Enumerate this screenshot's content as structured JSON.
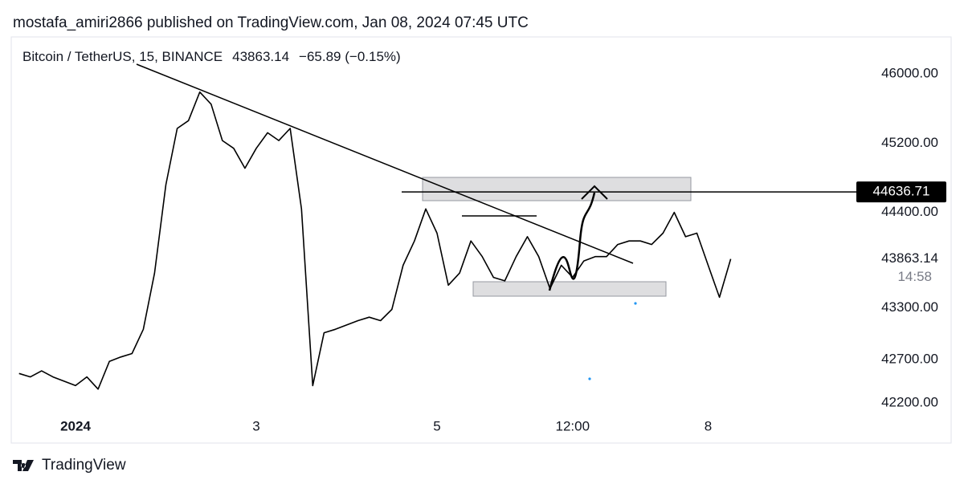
{
  "header": "mostafa_amiri2866 published on TradingView.com, Jan 08, 2024 07:45 UTC",
  "footer": "TradingView",
  "chart_data": {
    "type": "line",
    "title": "Bitcoin / TetherUS, 15, BINANCE",
    "change": "−65.89 (−0.15%)",
    "last_price": 43863.14,
    "countdown": "14:58",
    "hline": 44636.71,
    "categories": [
      null,
      null,
      null,
      null,
      null,
      "2024",
      null,
      null,
      null,
      null,
      null,
      null,
      null,
      null,
      null,
      null,
      null,
      null,
      null,
      null,
      null,
      "3",
      null,
      null,
      null,
      null,
      null,
      null,
      null,
      null,
      null,
      null,
      null,
      null,
      null,
      null,
      null,
      "5",
      null,
      null,
      null,
      null,
      null,
      null,
      null,
      null,
      null,
      null,
      null,
      "12:00",
      null,
      null,
      null,
      null,
      null,
      null,
      null,
      null,
      null,
      null,
      null,
      "8",
      null,
      null
    ],
    "series": [
      {
        "name": "BTCUSDT",
        "color": "#000000",
        "values": [
          42540,
          42500,
          42570,
          42500,
          42450,
          42400,
          42500,
          42360,
          42680,
          42730,
          42770,
          43050,
          43700,
          44720,
          45370,
          45460,
          45790,
          45650,
          45230,
          45140,
          44910,
          45140,
          45320,
          45230,
          45370,
          44440,
          42400,
          43010,
          43050,
          43100,
          43150,
          43190,
          43150,
          43280,
          43790,
          44070,
          44440,
          44160,
          43560,
          43700,
          44070,
          43890,
          43650,
          43610,
          43890,
          44120,
          43890,
          43520,
          43790,
          43650,
          43840,
          43890,
          43890,
          44030,
          44070,
          44070,
          44030,
          44160,
          44400,
          44120,
          44160,
          43790,
          43420,
          43863.14
        ]
      }
    ],
    "ylim": [
      42126,
      46343
    ],
    "yticks": [
      {
        "value": 46000,
        "label": "46000.00"
      },
      {
        "value": 45200,
        "label": "45200.00"
      },
      {
        "value": 44400,
        "label": "44400.00"
      },
      {
        "value": 43300,
        "label": "43300.00"
      },
      {
        "value": 42700,
        "label": "42700.00"
      },
      {
        "value": 42200,
        "label": "42200.00"
      }
    ],
    "grid": false
  }
}
